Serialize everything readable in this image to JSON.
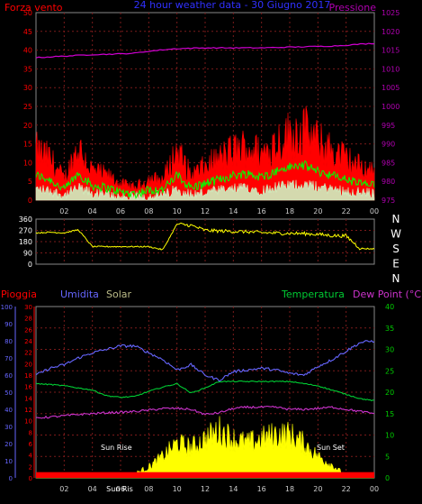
{
  "colors": {
    "wind": "#ff0000",
    "gust": "#ff0000",
    "wind_avg": "#00ff00",
    "wind_min": "#ccffcc",
    "pressure": "#d000d0",
    "direction": "#ffff00",
    "humidity": "#6666ff",
    "temperature": "#00cc33",
    "dew": "#cc33cc",
    "solar": "#ffff00",
    "rain": "#ff0000",
    "axis_left_top": "#ff0000",
    "axis_right_top": "#b000b0",
    "axis_humidity": "#6666ff",
    "axis_rain": "#ff0000",
    "axis_right_bottom": "#00cc00",
    "time_ticks": "#cccccc",
    "grid": "#7a1a1a"
  },
  "top": {
    "left_label": "Forza vento",
    "title": "24 hour weather data - 30 Giugno 2017",
    "right_label": "Pressione",
    "ylabels_left": [
      "0",
      "5",
      "10",
      "15",
      "20",
      "25",
      "30",
      "35",
      "40",
      "45",
      "50"
    ],
    "ylabels_right": [
      "975",
      "980",
      "985",
      "990",
      "995",
      "1000",
      "1005",
      "1010",
      "1015",
      "1020",
      "1025"
    ]
  },
  "mid": {
    "ylabels": [
      "0",
      "90",
      "180",
      "270",
      "360"
    ],
    "letters": [
      "N",
      "W",
      "S",
      "E",
      "N"
    ]
  },
  "bottom": {
    "label_rain": "Pioggia",
    "label_humidity": "Umidita",
    "label_solar": "Solar",
    "label_temp": "Temperatura",
    "label_dew": "Dew Point (°C)",
    "ylabels_humidity": [
      "0",
      "10",
      "20",
      "30",
      "40",
      "50",
      "60",
      "70",
      "80",
      "90",
      "100"
    ],
    "ylabels_rain": [
      "0",
      "2",
      "4",
      "6",
      "8",
      "10",
      "12",
      "14",
      "16",
      "18",
      "20",
      "22",
      "24",
      "26",
      "28",
      "30"
    ],
    "ylabels_right": [
      "0",
      "5",
      "10",
      "15",
      "20",
      "25",
      "30",
      "35",
      "40"
    ],
    "sunrise": "Sun Rise",
    "sunset": "Sun Set",
    "sunrise_tick": "Sun Ris"
  },
  "time_labels": [
    "02",
    "04",
    "06",
    "08",
    "10",
    "12",
    "14",
    "16",
    "18",
    "20",
    "22",
    "00"
  ],
  "chart_data": [
    {
      "type": "line",
      "title": "24 hour weather data - 30 Giugno 2017",
      "xlabel": "",
      "x": [
        "00",
        "01",
        "02",
        "03",
        "04",
        "05",
        "06",
        "07",
        "08",
        "09",
        "10",
        "11",
        "12",
        "13",
        "14",
        "15",
        "16",
        "17",
        "18",
        "19",
        "20",
        "21",
        "22",
        "23",
        "00"
      ],
      "series": [
        {
          "name": "Forza vento",
          "axis": "left",
          "values": [
            12,
            10,
            5,
            13,
            7,
            6,
            4,
            3,
            5,
            5,
            12,
            6,
            8,
            10,
            12,
            13,
            11,
            14,
            16,
            17,
            14,
            12,
            10,
            8,
            7
          ]
        },
        {
          "name": "Pressione",
          "axis": "right",
          "values": [
            1013,
            1013.2,
            1013.4,
            1013.6,
            1013.8,
            1013.9,
            1014,
            1014.2,
            1014.7,
            1015.1,
            1015.4,
            1015.5,
            1015.6,
            1015.6,
            1015.6,
            1015.6,
            1015.6,
            1015.7,
            1015.8,
            1015.9,
            1016,
            1016.1,
            1016.3,
            1016.6,
            1016.8
          ]
        }
      ],
      "ylim_left": [
        0,
        50
      ],
      "ylim_right": [
        975,
        1025
      ],
      "grid": true
    },
    {
      "type": "line",
      "xlabel": "",
      "x": [
        "00",
        "01",
        "02",
        "03",
        "04",
        "05",
        "06",
        "07",
        "08",
        "09",
        "10",
        "11",
        "12",
        "13",
        "14",
        "15",
        "16",
        "17",
        "18",
        "19",
        "20",
        "21",
        "22",
        "23",
        "00"
      ],
      "series": [
        {
          "values": [
            250,
            255,
            250,
            275,
            140,
            140,
            140,
            140,
            140,
            115,
            320,
            310,
            270,
            265,
            262,
            258,
            252,
            248,
            246,
            244,
            238,
            228,
            225,
            125,
            122
          ]
        }
      ],
      "ylim": [
        0,
        360
      ],
      "grid": true
    },
    {
      "type": "line",
      "xlabel": "",
      "x": [
        "00",
        "01",
        "02",
        "03",
        "04",
        "05",
        "06",
        "07",
        "08",
        "09",
        "10",
        "11",
        "12",
        "13",
        "14",
        "15",
        "16",
        "17",
        "18",
        "19",
        "20",
        "21",
        "22",
        "23",
        "00"
      ],
      "series": [
        {
          "name": "Umidita",
          "axis": "humidity",
          "values": [
            60,
            64,
            66,
            70,
            73,
            75,
            77,
            77,
            73,
            69,
            63,
            66,
            60,
            57,
            62,
            63,
            64,
            63,
            61,
            60,
            65,
            69,
            74,
            79,
            80
          ]
        },
        {
          "name": "Temperatura",
          "axis": "right",
          "values": [
            22,
            21.8,
            21.5,
            21,
            20.5,
            19.2,
            18.8,
            19,
            20.2,
            21.2,
            22,
            19.8,
            21,
            22.5,
            22.5,
            22.5,
            22.5,
            22.5,
            22.5,
            22,
            21.5,
            20.5,
            19.5,
            18.5,
            18
          ]
        },
        {
          "name": "Dew Point (°C)",
          "axis": "right",
          "values": [
            14,
            14.2,
            14.5,
            14.8,
            15,
            15.2,
            15.3,
            15.5,
            15.8,
            16.2,
            16.2,
            16,
            14.8,
            15.2,
            16.2,
            16.5,
            16.5,
            16.5,
            16,
            16,
            16.2,
            16.5,
            16,
            15.5,
            15
          ]
        },
        {
          "name": "Solar",
          "axis": "right",
          "values": [
            0,
            0,
            0,
            0,
            0,
            0,
            0,
            1,
            2.5,
            5,
            8,
            7,
            9,
            11,
            9,
            8,
            9,
            10,
            10,
            8,
            5,
            3,
            0.5,
            0,
            0
          ]
        },
        {
          "name": "Pioggia",
          "axis": "rain",
          "values": [
            1,
            1,
            1,
            1,
            1,
            1,
            1,
            1,
            1,
            1,
            1,
            1,
            1,
            1,
            1,
            1,
            1,
            1,
            1,
            1,
            1,
            1,
            1,
            1,
            1
          ]
        }
      ],
      "ylim_humidity": [
        0,
        100
      ],
      "ylim_rain": [
        0,
        30
      ],
      "ylim_right": [
        0,
        40
      ],
      "grid": true
    }
  ]
}
